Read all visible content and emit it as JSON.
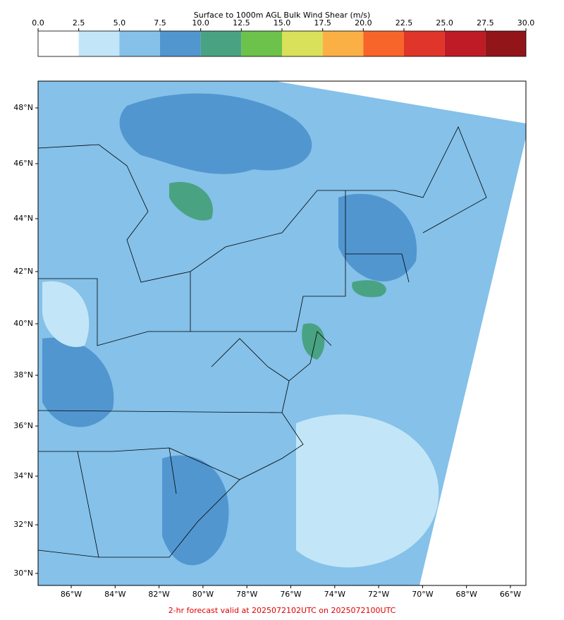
{
  "colorbar": {
    "title": "Surface to 1000m AGL Bulk Wind Shear (m/s)",
    "lim": [
      0,
      30
    ],
    "ticks": [
      {
        "value": 0,
        "label": "0.0"
      },
      2.5,
      {
        "value": 5,
        "label": "5.0"
      },
      7.5,
      {
        "value": 10,
        "label": "10.0"
      },
      12.5,
      {
        "value": 15,
        "label": "15.0"
      },
      17.5,
      {
        "value": 20,
        "label": "20.0"
      },
      22.5,
      {
        "value": 25,
        "label": "25.0"
      },
      27.5,
      {
        "value": 30,
        "label": "30.0"
      }
    ],
    "colors": [
      "#ffffff",
      "#c2e6f8",
      "#85c1e9",
      "#5296d0",
      "#49a383",
      "#6cc24a",
      "#d9e05a",
      "#fbb045",
      "#f7652b",
      "#e0352a",
      "#be1b26",
      "#921619"
    ]
  },
  "map": {
    "lat_labels": [
      "48°N",
      "46°N",
      "44°N",
      "42°N",
      "40°N",
      "38°N",
      "36°N",
      "34°N",
      "32°N",
      "30°N"
    ],
    "lon_labels": [
      "86°W",
      "84°W",
      "82°W",
      "80°W",
      "78°W",
      "76°W",
      "74°W",
      "72°W",
      "70°W",
      "68°W",
      "66°W"
    ],
    "footer": "2-hr forecast valid at 2025072102UTC on 2025072100UTC"
  }
}
